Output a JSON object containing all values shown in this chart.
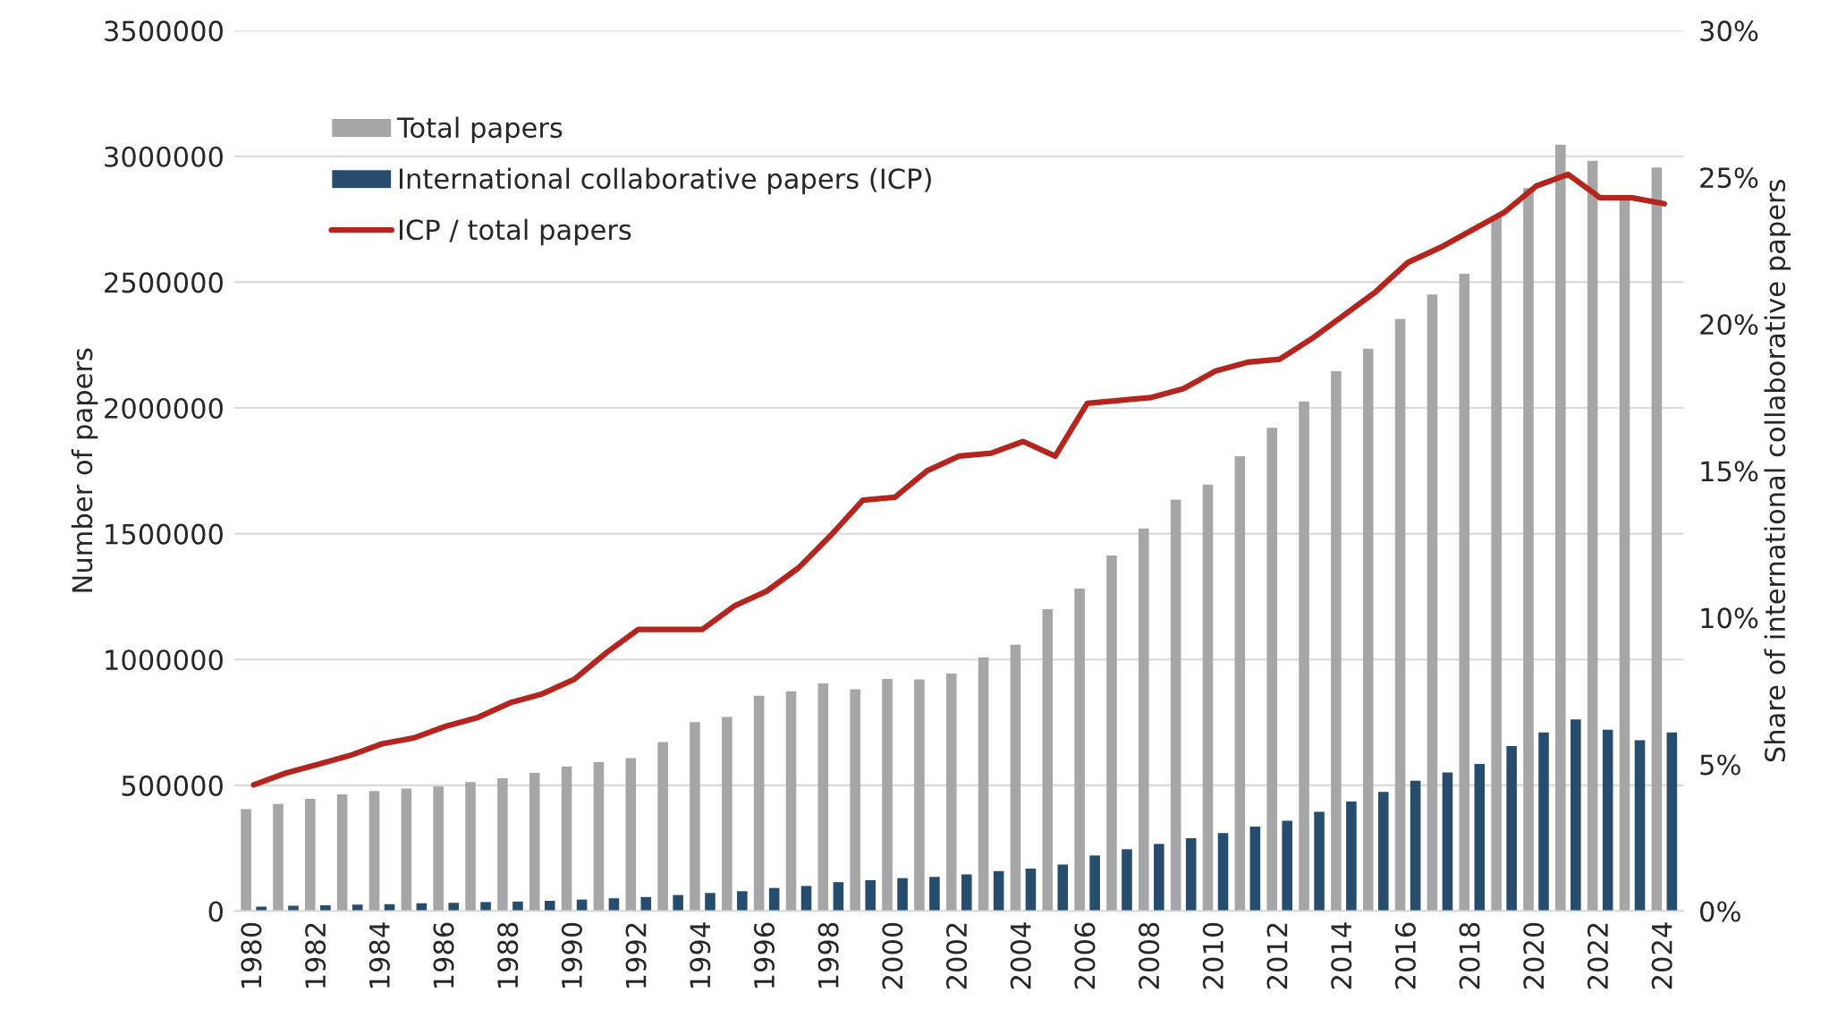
{
  "chart_data": {
    "type": "bar",
    "ylabel": "Number of papers",
    "y2label": "Share of international collaborative papers",
    "categories": [
      "1980",
      null,
      "1982",
      null,
      "1984",
      null,
      "1986",
      null,
      "1988",
      null,
      "1990",
      null,
      "1992",
      null,
      "1994",
      null,
      "1996",
      null,
      "1998",
      null,
      "2000",
      null,
      "2002",
      null,
      "2004",
      null,
      "2006",
      null,
      "2008",
      null,
      "2010",
      null,
      "2012",
      null,
      "2014",
      null,
      "2016",
      null,
      "2018",
      null,
      "2020",
      null,
      "2022",
      null,
      "2024"
    ],
    "series": [
      {
        "name": "Total papers",
        "color": "#a6a6a6",
        "values": [
          405000,
          426000,
          446000,
          464000,
          477000,
          487000,
          495000,
          513000,
          528000,
          549000,
          574000,
          592000,
          608000,
          672000,
          751000,
          772000,
          856000,
          874000,
          905000,
          882000,
          923000,
          921000,
          944000,
          1008000,
          1059000,
          1200000,
          1282000,
          1413000,
          1521000,
          1636000,
          1695000,
          1808000,
          1921000,
          2026000,
          2146000,
          2236000,
          2354000,
          2451000,
          2533000,
          2762000,
          2874000,
          3046000,
          2982000,
          2828000,
          2956000
        ]
      },
      {
        "name": "International collaborative papers (ICP)",
        "color": "#264d6e",
        "values": [
          18000,
          21000,
          23000,
          26000,
          28000,
          31000,
          33000,
          36000,
          38000,
          41000,
          46000,
          51000,
          56000,
          64000,
          72000,
          79000,
          92000,
          100000,
          115000,
          123000,
          131000,
          136000,
          146000,
          159000,
          169000,
          185000,
          221000,
          246000,
          267000,
          290000,
          310000,
          336000,
          359000,
          395000,
          436000,
          474000,
          518000,
          551000,
          585000,
          656000,
          710000,
          762000,
          721000,
          679000,
          710000
        ]
      },
      {
        "name": "ICP / total papers",
        "type": "line",
        "axis": "y2",
        "color": "#b5251e",
        "values": [
          4.3,
          4.7,
          5.0,
          5.3,
          5.7,
          5.9,
          6.3,
          6.6,
          7.1,
          7.4,
          7.9,
          8.8,
          9.6,
          9.6,
          9.6,
          10.4,
          10.9,
          11.7,
          12.8,
          14.0,
          14.1,
          15.0,
          15.5,
          15.6,
          16.0,
          15.5,
          17.3,
          17.4,
          17.5,
          17.8,
          18.4,
          18.7,
          18.8,
          19.5,
          20.3,
          21.1,
          22.1,
          22.6,
          23.2,
          23.8,
          24.7,
          25.1,
          24.3,
          24.3,
          24.1
        ]
      }
    ],
    "ylim": [
      0,
      3500000
    ],
    "yticks": [
      0,
      500000,
      1000000,
      1500000,
      2000000,
      2500000,
      3000000,
      3500000
    ],
    "y2lim": [
      0,
      30
    ],
    "y2ticks": [
      {
        "value": 0,
        "label": "0%"
      },
      {
        "value": 5,
        "label": "5%"
      },
      {
        "value": 10,
        "label": "10%"
      },
      {
        "value": 15,
        "label": "15%"
      },
      {
        "value": 20,
        "label": "20%"
      },
      {
        "value": 25,
        "label": "25%"
      },
      {
        "value": 30,
        "label": "30%"
      }
    ],
    "grid": "y",
    "legend": "top left",
    "marker": "none",
    "line_style": "solid"
  }
}
